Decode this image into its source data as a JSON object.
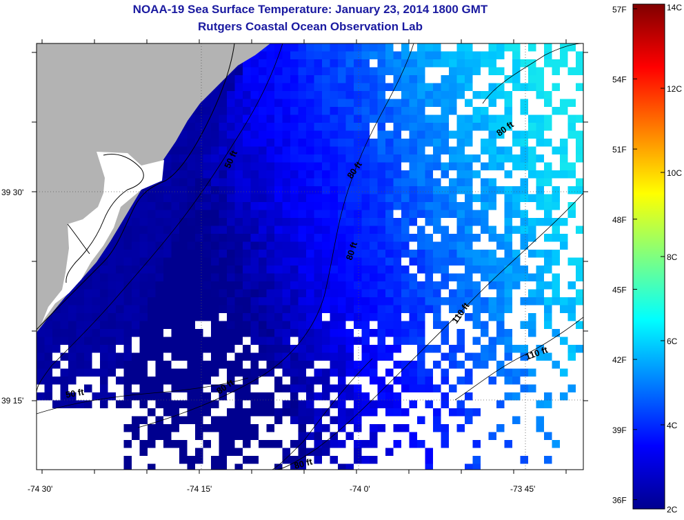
{
  "title": "NOAA-19 Sea Surface Temperature:  January 23, 2014 1800 GMT",
  "subtitle": "Rutgers Coastal Ocean Observation Lab",
  "axes": {
    "x_ticks": [
      "-74 30'",
      "-74 15'",
      "-74 0'",
      "-73 45'"
    ],
    "y_ticks": [
      "39 30'",
      "39 15'"
    ]
  },
  "contour_labels": [
    {
      "text": "50 ft"
    },
    {
      "text": "80 ft"
    },
    {
      "text": "80 ft"
    },
    {
      "text": "80 ft"
    },
    {
      "text": "110 ft"
    },
    {
      "text": "110 ft"
    },
    {
      "text": "50 ft"
    },
    {
      "text": "80 ft"
    },
    {
      "text": "80 ft"
    }
  ],
  "colorbar": {
    "fahrenheit_labels": [
      "57F",
      "54F",
      "51F",
      "48F",
      "45F",
      "42F",
      "39F",
      "36F"
    ],
    "celsius_labels": [
      "14C",
      "12C",
      "10C",
      "8C",
      "6C",
      "4C",
      "2C"
    ],
    "range_c": [
      2,
      14
    ]
  },
  "colors": {
    "land": "#b3b3b3",
    "no_data": "#ffffff",
    "title": "#1a1aa0"
  }
}
